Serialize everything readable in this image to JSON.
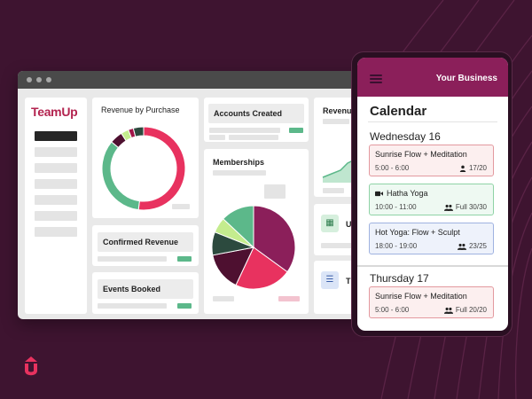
{
  "brand": {
    "logo_text": "TeamUp",
    "accent": "#b3234f",
    "background": "#3e1430"
  },
  "dashboard": {
    "revenue_by_purchase": {
      "title": "Revenue by Purchase"
    },
    "accounts_created": {
      "title": "Accounts Created"
    },
    "revenue_trend": {
      "title": "Revenu"
    },
    "memberships": {
      "title": "Memberships"
    },
    "confirmed_revenue": {
      "title": "Confirmed Revenue"
    },
    "events_booked": {
      "title": "Events Booked"
    },
    "card_u": {
      "label": "U"
    },
    "card_t": {
      "label": "T"
    }
  },
  "chart_data": [
    {
      "type": "pie",
      "variant": "donut",
      "categories": [
        "Pink",
        "Green",
        "Dark maroon",
        "Light green",
        "Deep pink",
        "Dark teal"
      ],
      "values": [
        52,
        34,
        5,
        3,
        2,
        4
      ],
      "colors": [
        "#e8325f",
        "#5cb88a",
        "#4e1030",
        "#c4ec8e",
        "#a01648",
        "#2c4a3e"
      ]
    },
    {
      "type": "pie",
      "categories": [
        "Maroon",
        "Pink",
        "Dark maroon",
        "Dark teal",
        "Light green",
        "Green"
      ],
      "values": [
        35,
        22,
        15,
        9,
        6,
        13
      ],
      "colors": [
        "#8b1f5a",
        "#e8325f",
        "#4e1030",
        "#2c4a3e",
        "#c4ec8e",
        "#5cb88a"
      ]
    }
  ],
  "phone": {
    "header": {
      "business_name": "Your Business"
    },
    "calendar_title": "Calendar",
    "days": [
      {
        "label": "Wednesday 16",
        "events": [
          {
            "title": "Sunrise Flow + Meditation",
            "time": "5:00 - 6:00",
            "capacity": "17/20",
            "style": "pink",
            "icon": "person-icon"
          },
          {
            "title": "Hatha Yoga",
            "time": "10:00 - 11:00",
            "capacity": "Full 30/30",
            "style": "green",
            "icon": "group-icon",
            "title_icon": "video-icon"
          },
          {
            "title": "Hot Yoga: Flow + Sculpt",
            "time": "18:00 - 19:00",
            "capacity": "23/25",
            "style": "blue",
            "icon": "group-icon"
          }
        ]
      },
      {
        "label": "Thursday 17",
        "events": [
          {
            "title": "Sunrise Flow + Meditation",
            "time": "5:00 - 6:00",
            "capacity": "Full 20/20",
            "style": "pink",
            "icon": "group-icon"
          }
        ]
      }
    ]
  }
}
